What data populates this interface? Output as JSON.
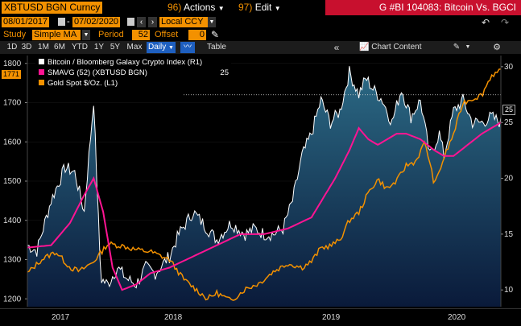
{
  "toolbar": {
    "ticker": "XBTUSD BGN Curncy",
    "actions_num": "96)",
    "actions_label": "Actions",
    "edit_num": "97)",
    "edit_label": "Edit",
    "title": "G #BI 104083: Bitcoin Vs. BGCI"
  },
  "range": {
    "start": "08/01/2017",
    "end": "07/02/2020",
    "currency": "Local CCY"
  },
  "study": {
    "label": "Study",
    "value": "Simple MA",
    "period_label": "Period",
    "period": "52",
    "offset_label": "Offset",
    "offset": "0"
  },
  "tabs": [
    "1D",
    "3D",
    "1M",
    "6M",
    "YTD",
    "1Y",
    "5Y",
    "Max"
  ],
  "frequency": "Daily",
  "table_label": "Table",
  "chart_content_label": "Chart Content",
  "legend": [
    {
      "label": "Bitcoin / Bloomberg Galaxy Crypto Index (R1)",
      "value": "",
      "color": "#ffffff"
    },
    {
      "label": "SMAVG (52) (XBTUSD BGN)",
      "value": "25",
      "color": "#ff1493"
    },
    {
      "label": "Gold Spot $/Oz. (L1)",
      "value": "",
      "color": "#f39100"
    }
  ],
  "tags": {
    "left_gold": "1771",
    "right_ratio": "25"
  },
  "colors": {
    "accent": "#f39100",
    "header_red": "#c8102e",
    "area_top": "#2c6b86",
    "area_bottom": "#0a1a3a",
    "sma": "#ff1493",
    "gold": "#f39100"
  },
  "chart_data": {
    "type": "line",
    "x_labels": [
      "2017",
      "2018",
      "2019",
      "2020"
    ],
    "y_left": {
      "ticks": [
        1200,
        1300,
        1400,
        1500,
        1600,
        1700,
        1800
      ],
      "range": [
        1180,
        1820
      ]
    },
    "y_right": {
      "ticks": [
        10,
        15,
        20,
        25,
        30
      ],
      "range": [
        8.5,
        31
      ]
    },
    "reference_line_left": 1720,
    "series": [
      {
        "name": "Bitcoin / Bloomberg Galaxy Crypto Index (R1)",
        "axis": "right",
        "style": "area",
        "t": [
          0,
          0.02,
          0.05,
          0.08,
          0.1,
          0.12,
          0.14,
          0.155,
          0.17,
          0.19,
          0.21,
          0.23,
          0.25,
          0.27,
          0.3,
          0.32,
          0.35,
          0.38,
          0.4,
          0.43,
          0.46,
          0.48,
          0.5,
          0.52,
          0.54,
          0.56,
          0.58,
          0.6,
          0.62,
          0.64,
          0.66,
          0.68,
          0.7,
          0.715,
          0.73,
          0.75,
          0.77,
          0.79,
          0.81,
          0.83,
          0.85,
          0.87,
          0.88,
          0.9,
          0.92,
          0.94,
          0.96,
          0.98,
          1
        ],
        "v": [
          14,
          13.5,
          18,
          21,
          20.5,
          17,
          27,
          11,
          10.5,
          12,
          11,
          10.5,
          12,
          11.5,
          13,
          15,
          17,
          15.5,
          14.5,
          16,
          15,
          15.5,
          15,
          15,
          15.5,
          18,
          22,
          24,
          27,
          25,
          26,
          29.5,
          27.5,
          29,
          28,
          27,
          25,
          28,
          25.5,
          27,
          22,
          24,
          22,
          26,
          27,
          25,
          25,
          25.5,
          25
        ]
      },
      {
        "name": "SMAVG (52) (XBTUSD BGN)",
        "axis": "right",
        "style": "line",
        "t": [
          0,
          0.05,
          0.09,
          0.12,
          0.14,
          0.16,
          0.18,
          0.2,
          0.23,
          0.26,
          0.3,
          0.35,
          0.4,
          0.45,
          0.5,
          0.55,
          0.6,
          0.65,
          0.68,
          0.7,
          0.72,
          0.74,
          0.76,
          0.78,
          0.8,
          0.83,
          0.86,
          0.88,
          0.9,
          0.93,
          0.96,
          1
        ],
        "v": [
          13.8,
          14,
          16,
          18.5,
          20,
          17,
          12,
          10,
          10.5,
          11.5,
          12,
          13,
          14,
          15,
          15,
          15.5,
          16.5,
          20,
          22.5,
          24.5,
          23.5,
          23,
          23.5,
          24,
          24,
          23.5,
          22.5,
          22,
          22,
          23,
          24,
          25
        ]
      },
      {
        "name": "Gold Spot $/Oz. (L1)",
        "axis": "left",
        "style": "line",
        "t": [
          0,
          0.03,
          0.06,
          0.09,
          0.11,
          0.14,
          0.17,
          0.2,
          0.23,
          0.26,
          0.3,
          0.33,
          0.36,
          0.38,
          0.4,
          0.43,
          0.46,
          0.49,
          0.52,
          0.55,
          0.58,
          0.6,
          0.62,
          0.64,
          0.66,
          0.68,
          0.7,
          0.72,
          0.74,
          0.76,
          0.78,
          0.8,
          0.82,
          0.84,
          0.86,
          0.88,
          0.9,
          0.92,
          0.94,
          0.96,
          0.98,
          1
        ],
        "v": [
          1265,
          1300,
          1320,
          1280,
          1270,
          1295,
          1340,
          1335,
          1325,
          1320,
          1300,
          1250,
          1220,
          1200,
          1215,
          1195,
          1225,
          1240,
          1270,
          1290,
          1280,
          1295,
          1330,
          1335,
          1350,
          1400,
          1420,
          1470,
          1505,
          1480,
          1500,
          1540,
          1550,
          1600,
          1490,
          1560,
          1620,
          1700,
          1710,
          1720,
          1770,
          1780
        ]
      }
    ]
  }
}
